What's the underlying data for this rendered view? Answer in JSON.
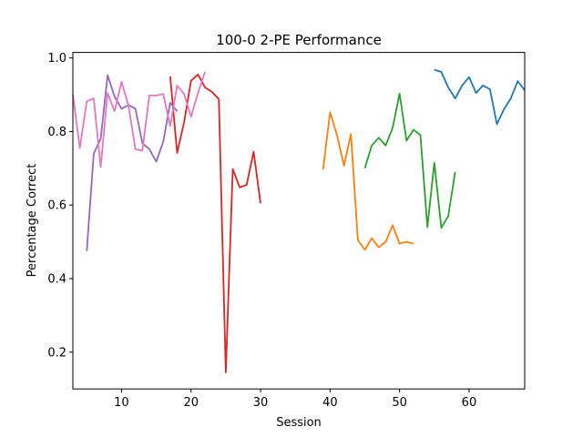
{
  "chart_data": {
    "type": "line",
    "title": "100-0 2-PE Performance",
    "xlabel": "Session",
    "ylabel": "Percentage Correct",
    "xlim": [
      3,
      68
    ],
    "ylim": [
      0.1,
      1.015
    ],
    "grid": false,
    "xticks": [
      10,
      20,
      30,
      40,
      50,
      60
    ],
    "yticks": [
      0.2,
      0.4,
      0.6,
      0.8,
      1.0
    ],
    "series": [
      {
        "color": "#1f77b4",
        "x": [
          55,
          56,
          57,
          58,
          59,
          60,
          61,
          62,
          63,
          64,
          65,
          66,
          67,
          68
        ],
        "y": [
          0.968,
          0.962,
          0.92,
          0.89,
          0.925,
          0.948,
          0.905,
          0.925,
          0.915,
          0.82,
          0.86,
          0.89,
          0.937,
          0.912
        ]
      },
      {
        "color": "#ff7f0e",
        "x": [
          39,
          40,
          41,
          42,
          43,
          44,
          45,
          46,
          47,
          48,
          49,
          50,
          51,
          52
        ],
        "y": [
          0.697,
          0.852,
          0.79,
          0.707,
          0.793,
          0.505,
          0.478,
          0.51,
          0.485,
          0.5,
          0.545,
          0.495,
          0.5,
          0.495
        ]
      },
      {
        "color": "#2ca02c",
        "x": [
          45,
          46,
          47,
          48,
          49,
          50,
          51,
          52,
          53,
          54,
          55,
          56,
          57,
          58
        ],
        "y": [
          0.7,
          0.762,
          0.783,
          0.762,
          0.81,
          0.903,
          0.775,
          0.805,
          0.79,
          0.54,
          0.715,
          0.538,
          0.57,
          0.69
        ]
      },
      {
        "color": "#d62728",
        "x": [
          17,
          18,
          19,
          20,
          21,
          22,
          23,
          24,
          25,
          26,
          27,
          28,
          29,
          30
        ],
        "y": [
          0.95,
          0.742,
          0.825,
          0.938,
          0.955,
          0.92,
          0.908,
          0.888,
          0.145,
          0.698,
          0.648,
          0.655,
          0.745,
          0.605
        ]
      },
      {
        "color": "#9467bd",
        "x": [
          5,
          6,
          7,
          8,
          9,
          10,
          11,
          12,
          13,
          14,
          15,
          16,
          17,
          18
        ],
        "y": [
          0.475,
          0.74,
          0.78,
          0.953,
          0.895,
          0.862,
          0.872,
          0.862,
          0.768,
          0.752,
          0.718,
          0.772,
          0.878,
          0.855
        ]
      },
      {
        "color": "#e377c2",
        "x": [
          3,
          4,
          5,
          6,
          7,
          8,
          9,
          10,
          11,
          12,
          13,
          14,
          15,
          16,
          17,
          18,
          19,
          20,
          21,
          22
        ],
        "y": [
          0.9,
          0.755,
          0.882,
          0.89,
          0.703,
          0.905,
          0.855,
          0.935,
          0.87,
          0.752,
          0.748,
          0.898,
          0.898,
          0.902,
          0.815,
          0.925,
          0.902,
          0.84,
          0.905,
          0.962
        ]
      }
    ]
  }
}
